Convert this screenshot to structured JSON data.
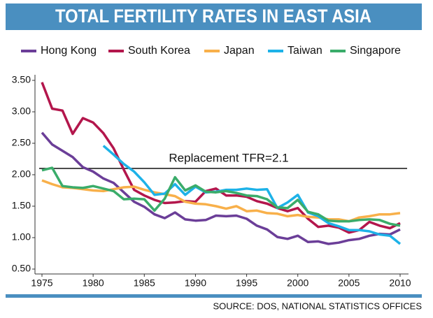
{
  "chart_data": {
    "type": "line",
    "title": "TOTAL FERTILITY RATES IN EAST ASIA",
    "source": "SOURCE: DOS, NATIONAL STATISTICS OFFICES",
    "x": [
      1975,
      1976,
      1977,
      1978,
      1979,
      1980,
      1981,
      1982,
      1983,
      1984,
      1985,
      1986,
      1987,
      1988,
      1989,
      1990,
      1991,
      1992,
      1993,
      1994,
      1995,
      1996,
      1997,
      1998,
      1999,
      2000,
      2001,
      2002,
      2003,
      2004,
      2005,
      2006,
      2007,
      2008,
      2009,
      2010
    ],
    "series": [
      {
        "name": "Hong Kong",
        "color": "#6b3e98",
        "values": [
          2.67,
          2.48,
          2.38,
          2.28,
          2.12,
          2.05,
          1.94,
          1.87,
          1.72,
          1.57,
          1.49,
          1.37,
          1.31,
          1.4,
          1.29,
          1.27,
          1.28,
          1.35,
          1.34,
          1.35,
          1.3,
          1.19,
          1.13,
          1.01,
          0.98,
          1.03,
          0.93,
          0.94,
          0.9,
          0.92,
          0.96,
          0.98,
          1.03,
          1.06,
          1.05,
          1.13
        ]
      },
      {
        "name": "South Korea",
        "color": "#b3164c",
        "values": [
          3.47,
          3.05,
          3.02,
          2.65,
          2.9,
          2.83,
          2.66,
          2.42,
          2.08,
          1.76,
          1.67,
          1.6,
          1.55,
          1.56,
          1.58,
          1.57,
          1.74,
          1.78,
          1.67,
          1.67,
          1.65,
          1.58,
          1.54,
          1.47,
          1.42,
          1.47,
          1.3,
          1.17,
          1.19,
          1.16,
          1.08,
          1.12,
          1.25,
          1.19,
          1.15,
          1.23
        ]
      },
      {
        "name": "Japan",
        "color": "#f8b04a",
        "values": [
          1.91,
          1.85,
          1.8,
          1.79,
          1.77,
          1.75,
          1.74,
          1.77,
          1.8,
          1.81,
          1.76,
          1.72,
          1.69,
          1.66,
          1.57,
          1.54,
          1.53,
          1.5,
          1.46,
          1.5,
          1.42,
          1.43,
          1.39,
          1.38,
          1.34,
          1.36,
          1.33,
          1.32,
          1.29,
          1.29,
          1.26,
          1.32,
          1.34,
          1.37,
          1.37,
          1.39
        ]
      },
      {
        "name": "Taiwan",
        "color": "#1db2e8",
        "values": [
          null,
          null,
          null,
          null,
          null,
          null,
          2.46,
          2.32,
          2.17,
          2.05,
          1.88,
          1.68,
          1.7,
          1.85,
          1.68,
          1.81,
          1.72,
          1.73,
          1.76,
          1.76,
          1.78,
          1.76,
          1.77,
          1.47,
          1.56,
          1.68,
          1.4,
          1.34,
          1.23,
          1.18,
          1.12,
          1.12,
          1.1,
          1.05,
          1.03,
          0.9
        ]
      },
      {
        "name": "Singapore",
        "color": "#3aac6a",
        "values": [
          2.07,
          2.11,
          1.82,
          1.8,
          1.79,
          1.82,
          1.78,
          1.74,
          1.61,
          1.62,
          1.61,
          1.43,
          1.62,
          1.96,
          1.75,
          1.83,
          1.73,
          1.72,
          1.74,
          1.71,
          1.67,
          1.66,
          1.61,
          1.48,
          1.47,
          1.6,
          1.41,
          1.37,
          1.27,
          1.26,
          1.26,
          1.28,
          1.29,
          1.28,
          1.22,
          1.19
        ]
      }
    ],
    "reference_line": {
      "value": 2.1,
      "label": "Replacement TFR=2.1"
    },
    "xlim": [
      1975,
      2010
    ],
    "xticks": [
      1975,
      1980,
      1985,
      1990,
      1995,
      2000,
      2005,
      2010
    ],
    "ylim": [
      0.5,
      3.5
    ],
    "yticks": [
      {
        "value": 0.5,
        "label": "0.50"
      },
      {
        "value": 1,
        "label": "1.00"
      },
      {
        "value": 1.5,
        "label": "1.50"
      },
      {
        "value": 2,
        "label": "2.00"
      },
      {
        "value": 2.5,
        "label": "2.50"
      },
      {
        "value": 3,
        "label": "3.00"
      },
      {
        "value": 3.5,
        "label": "3.50"
      }
    ],
    "grid": false
  }
}
